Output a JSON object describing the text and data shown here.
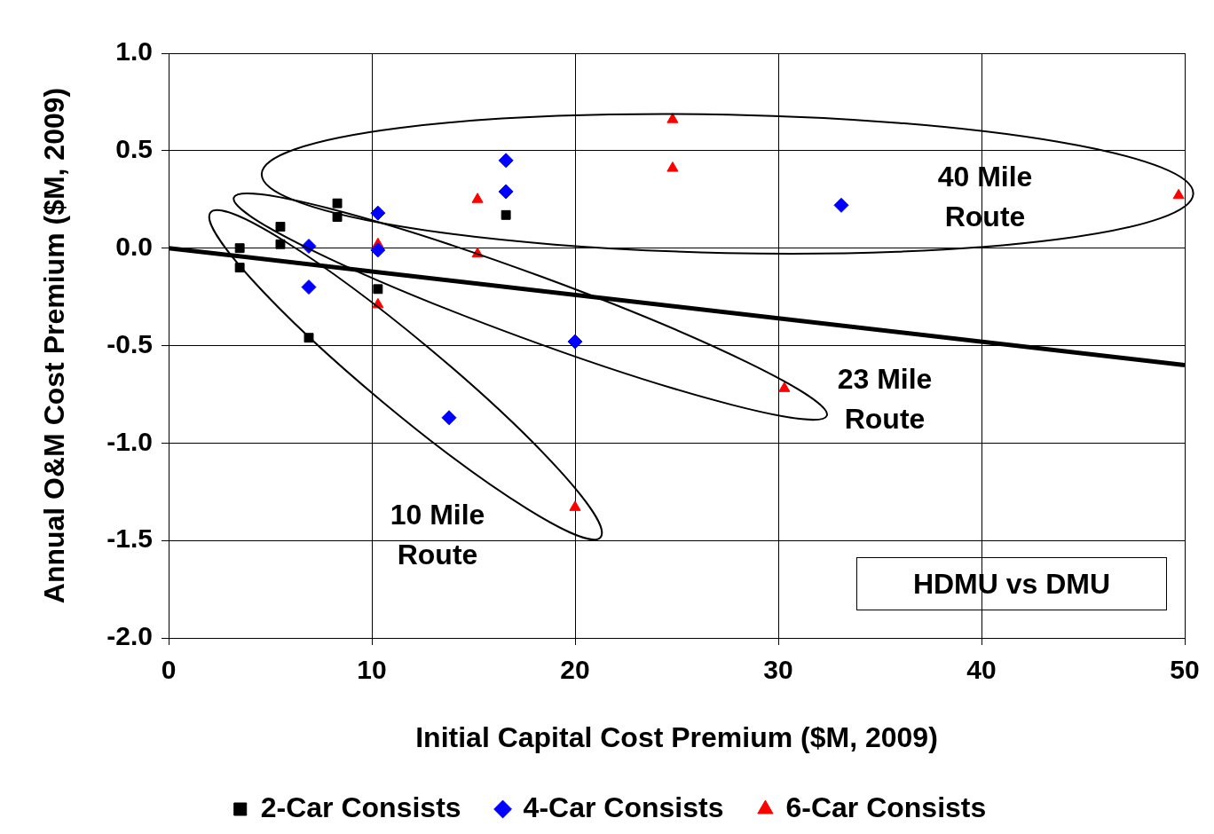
{
  "chart_data": {
    "type": "scatter",
    "xlabel": "Initial Capital Cost Premium ($M, 2009)",
    "ylabel": "Annual O&M Cost Premium ($M, 2009)",
    "xlim": [
      0,
      50
    ],
    "xticks": [
      0,
      10,
      20,
      30,
      40,
      50
    ],
    "ylim": [
      -2.0,
      1.0
    ],
    "yticks": [
      {
        "value": -2,
        "label": "-2.0"
      },
      {
        "value": -1.5,
        "label": "-1.5"
      },
      {
        "value": -1,
        "label": "-1.0"
      },
      {
        "value": -0.5,
        "label": "-0.5"
      },
      {
        "value": 0,
        "label": "0.0"
      },
      {
        "value": 0.5,
        "label": "0.5"
      },
      {
        "value": 1,
        "label": "1.0"
      }
    ],
    "grid": true,
    "legend": "bottom",
    "series": [
      {
        "name": "2-Car Consists",
        "color": "#000000",
        "marker": "square",
        "x": [
          3.5,
          3.5,
          5.5,
          5.5,
          8.3,
          8.3,
          6.9,
          10.3,
          16.6
        ],
        "values": [
          0.0,
          -0.1,
          0.11,
          0.02,
          0.23,
          0.16,
          -0.46,
          -0.21,
          0.17
        ]
      },
      {
        "name": "4-Car Consists",
        "color": "#0000ff",
        "marker": "diamond",
        "x": [
          16.6,
          16.6,
          10.3,
          10.3,
          6.9,
          6.9,
          13.8,
          20.0,
          33.1
        ],
        "values": [
          0.45,
          0.29,
          0.18,
          -0.01,
          0.01,
          -0.2,
          -0.87,
          -0.48,
          0.22
        ]
      },
      {
        "name": "6-Car Consists",
        "color": "#ff0000",
        "marker": "triangle",
        "x": [
          24.8,
          24.8,
          15.2,
          15.2,
          10.3,
          10.3,
          20.0,
          30.3,
          49.7
        ],
        "values": [
          0.66,
          0.41,
          0.25,
          -0.03,
          0.02,
          -0.29,
          -1.33,
          -0.72,
          0.27
        ]
      },
      {
        "type": "line",
        "color": "#000000",
        "marker": "none",
        "x": [
          0,
          50
        ],
        "values": [
          0,
          -0.6
        ]
      }
    ],
    "annotations": [
      "40 Mile Route",
      "23 Mile Route",
      "10 Mile Route",
      "HDMU vs DMU"
    ]
  }
}
